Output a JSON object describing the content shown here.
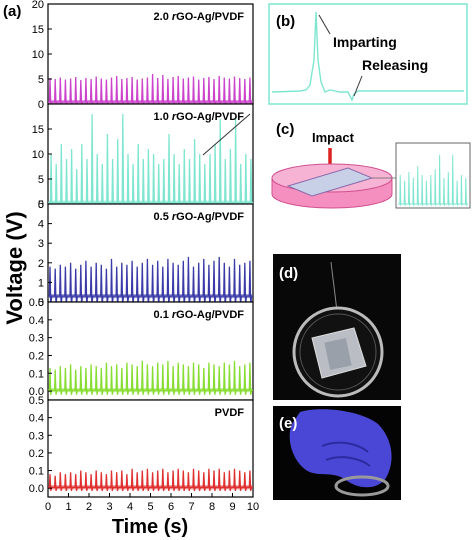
{
  "figure": {
    "panel_labels": {
      "a": "(a)",
      "b": "(b)",
      "c": "(c)",
      "d": "(d)",
      "e": "(e)"
    },
    "inset_b": {
      "peak_up_label": "Imparting",
      "peak_down_label": "Releasing"
    },
    "inset_c": {
      "impact_label": "Impact"
    }
  },
  "chart_data": {
    "type": "line",
    "xlabel": "Time (s)",
    "ylabel": "Voltage (V)",
    "xlim": [
      0,
      10
    ],
    "x_ticks": [
      0,
      1,
      2,
      3,
      4,
      5,
      6,
      7,
      8,
      9,
      10
    ],
    "grid": false,
    "subplots": [
      {
        "name": "2.0 rGO-Ag/PVDF",
        "name_parts": [
          "2.0 ",
          "r",
          "GO-Ag/PVDF"
        ],
        "color": "#cc44cc",
        "ylim": [
          0,
          20
        ],
        "y_ticks": [
          0,
          5,
          10,
          15,
          20
        ],
        "baseline": 0.4,
        "x_values": [
          0.1,
          0.35,
          0.6,
          0.85,
          1.1,
          1.35,
          1.6,
          1.85,
          2.1,
          2.35,
          2.6,
          2.85,
          3.1,
          3.35,
          3.6,
          3.85,
          4.1,
          4.35,
          4.6,
          4.85,
          5.1,
          5.35,
          5.6,
          5.85,
          6.1,
          6.35,
          6.6,
          6.85,
          7.1,
          7.35,
          7.6,
          7.85,
          8.1,
          8.35,
          8.6,
          8.85,
          9.1,
          9.35,
          9.6,
          9.85
        ],
        "peaks": [
          5.2,
          5.0,
          5.3,
          4.9,
          5.1,
          5.4,
          4.8,
          5.2,
          5.0,
          5.5,
          5.1,
          4.9,
          5.3,
          5.6,
          5.0,
          5.2,
          5.4,
          4.9,
          5.1,
          5.3,
          6.0,
          5.2,
          5.8,
          5.0,
          5.4,
          5.6,
          5.1,
          5.3,
          5.5,
          4.9,
          5.2,
          5.4,
          5.0,
          5.6,
          5.3,
          5.1,
          5.5,
          5.2,
          5.0,
          5.3
        ],
        "troughs": [
          -0.3,
          -0.3,
          -0.3,
          -0.3,
          -0.3,
          -0.3,
          -0.3,
          -0.3,
          -0.3,
          -0.3,
          -0.3,
          -0.3,
          -0.3,
          -0.3,
          -0.3,
          -0.3,
          -0.3,
          -0.3,
          -0.3,
          -0.3,
          -0.3,
          -0.3,
          -0.3,
          -0.3,
          -0.3,
          -0.3,
          -0.3,
          -0.3,
          -0.3,
          -0.3,
          -0.3,
          -0.3,
          -0.3,
          -0.3,
          -0.3,
          -0.3,
          -0.3,
          -0.3,
          -0.3,
          -0.3
        ]
      },
      {
        "name": "1.0 rGO-Ag/PVDF",
        "name_parts": [
          "1.0 ",
          "r",
          "GO-Ag/PVDF"
        ],
        "color": "#7ee6d0",
        "ylim": [
          0,
          20
        ],
        "y_ticks": [
          0,
          5,
          10,
          15
        ],
        "baseline": 0.3,
        "x_values": [
          0.15,
          0.4,
          0.65,
          0.9,
          1.15,
          1.4,
          1.65,
          1.9,
          2.15,
          2.4,
          2.65,
          2.9,
          3.15,
          3.4,
          3.65,
          3.9,
          4.15,
          4.4,
          4.65,
          4.9,
          5.15,
          5.4,
          5.65,
          5.9,
          6.15,
          6.4,
          6.65,
          6.9,
          7.15,
          7.4,
          7.65,
          7.9,
          8.15,
          8.4,
          8.65,
          8.9,
          9.15,
          9.4,
          9.65,
          9.9
        ],
        "peaks": [
          10,
          8,
          12,
          9,
          11,
          7,
          12,
          9,
          18,
          10,
          8,
          14,
          9,
          13,
          18,
          10,
          8,
          12,
          9,
          11,
          10,
          8,
          9,
          14,
          10,
          8,
          11,
          9,
          13,
          10,
          8,
          10,
          12,
          17,
          9,
          11,
          17,
          8,
          10,
          9
        ],
        "troughs": [
          -0.8,
          -0.8,
          -0.8,
          -0.8,
          -0.8,
          -0.8,
          -0.8,
          -0.8,
          -0.8,
          -0.8,
          -0.8,
          -0.8,
          -0.8,
          -0.8,
          -0.8,
          -0.8,
          -0.8,
          -0.8,
          -0.8,
          -0.8,
          -0.8,
          -0.8,
          -0.8,
          -0.8,
          -0.8,
          -0.8,
          -0.8,
          -0.8,
          -0.8,
          -0.8,
          -0.8,
          -0.8,
          -0.8,
          -0.8,
          -0.8,
          -0.8,
          -0.8,
          -0.8,
          -0.8,
          -0.8
        ]
      },
      {
        "name": "0.5 rGO-Ag/PVDF",
        "name_parts": [
          "0.5 ",
          "r",
          "GO-Ag/PVDF"
        ],
        "color": "#3a3aa8",
        "ylim": [
          0,
          5
        ],
        "y_ticks": [
          0,
          1,
          2,
          3,
          4,
          5
        ],
        "baseline": 0.3,
        "x_values": [
          0.1,
          0.35,
          0.6,
          0.85,
          1.1,
          1.35,
          1.6,
          1.85,
          2.1,
          2.35,
          2.6,
          2.85,
          3.1,
          3.35,
          3.6,
          3.85,
          4.1,
          4.35,
          4.6,
          4.85,
          5.1,
          5.35,
          5.6,
          5.85,
          6.1,
          6.35,
          6.6,
          6.85,
          7.1,
          7.35,
          7.6,
          7.85,
          8.1,
          8.35,
          8.6,
          8.85,
          9.1,
          9.35,
          9.6,
          9.85
        ],
        "peaks": [
          1.8,
          1.7,
          1.9,
          1.8,
          2.0,
          1.7,
          1.9,
          2.1,
          1.8,
          2.0,
          1.9,
          1.7,
          2.2,
          1.8,
          2.0,
          1.9,
          2.1,
          1.8,
          2.0,
          2.2,
          1.9,
          2.1,
          1.8,
          2.2,
          2.0,
          1.9,
          2.1,
          2.3,
          1.8,
          2.0,
          2.2,
          1.9,
          2.1,
          2.3,
          2.0,
          1.8,
          2.2,
          1.9,
          2.0,
          2.1
        ],
        "troughs": [
          -0.2,
          -0.2,
          -0.2,
          -0.2,
          -0.2,
          -0.2,
          -0.2,
          -0.2,
          -0.2,
          -0.2,
          -0.2,
          -0.2,
          -0.2,
          -0.2,
          -0.2,
          -0.2,
          -0.2,
          -0.2,
          -0.2,
          -0.2,
          -0.2,
          -0.2,
          -0.2,
          -0.2,
          -0.2,
          -0.2,
          -0.2,
          -0.2,
          -0.2,
          -0.2,
          -0.2,
          -0.2,
          -0.2,
          -0.2,
          -0.2,
          -0.2,
          -0.2,
          -0.2,
          -0.2,
          -0.2
        ]
      },
      {
        "name": "0.1 rGO-Ag/PVDF",
        "name_parts": [
          "0.1 ",
          "r",
          "GO-Ag/PVDF"
        ],
        "color": "#88dd33",
        "ylim": [
          -0.05,
          0.5
        ],
        "y_ticks": [
          0.0,
          0.1,
          0.2,
          0.3,
          0.4,
          0.5
        ],
        "baseline": 0.005,
        "x_values": [
          0.1,
          0.35,
          0.6,
          0.85,
          1.1,
          1.35,
          1.6,
          1.85,
          2.1,
          2.35,
          2.6,
          2.85,
          3.1,
          3.35,
          3.6,
          3.85,
          4.1,
          4.35,
          4.6,
          4.85,
          5.1,
          5.35,
          5.6,
          5.85,
          6.1,
          6.35,
          6.6,
          6.85,
          7.1,
          7.35,
          7.6,
          7.85,
          8.1,
          8.35,
          8.6,
          8.85,
          9.1,
          9.35,
          9.6,
          9.85
        ],
        "peaks": [
          0.13,
          0.12,
          0.14,
          0.13,
          0.15,
          0.12,
          0.14,
          0.13,
          0.15,
          0.14,
          0.13,
          0.16,
          0.14,
          0.15,
          0.13,
          0.16,
          0.15,
          0.14,
          0.17,
          0.15,
          0.14,
          0.16,
          0.15,
          0.17,
          0.14,
          0.16,
          0.15,
          0.14,
          0.16,
          0.15,
          0.13,
          0.16,
          0.15,
          0.14,
          0.16,
          0.15,
          0.17,
          0.14,
          0.15,
          0.16
        ],
        "troughs": [
          -0.02,
          -0.02,
          -0.02,
          -0.02,
          -0.02,
          -0.02,
          -0.02,
          -0.02,
          -0.02,
          -0.02,
          -0.02,
          -0.02,
          -0.02,
          -0.02,
          -0.02,
          -0.02,
          -0.02,
          -0.02,
          -0.02,
          -0.02,
          -0.02,
          -0.02,
          -0.02,
          -0.02,
          -0.02,
          -0.02,
          -0.02,
          -0.02,
          -0.02,
          -0.02,
          -0.02,
          -0.02,
          -0.02,
          -0.02,
          -0.02,
          -0.02,
          -0.02,
          -0.02,
          -0.02,
          -0.02
        ]
      },
      {
        "name": "PVDF",
        "name_parts": [
          "PVDF",
          "",
          ""
        ],
        "color": "#e03030",
        "ylim": [
          -0.05,
          0.5
        ],
        "y_ticks": [
          0.0,
          0.1,
          0.2,
          0.3,
          0.4,
          0.5
        ],
        "baseline": 0.005,
        "x_values": [
          0.1,
          0.35,
          0.6,
          0.85,
          1.1,
          1.35,
          1.6,
          1.85,
          2.1,
          2.35,
          2.6,
          2.85,
          3.1,
          3.35,
          3.6,
          3.85,
          4.1,
          4.35,
          4.6,
          4.85,
          5.1,
          5.35,
          5.6,
          5.85,
          6.1,
          6.35,
          6.6,
          6.85,
          7.1,
          7.35,
          7.6,
          7.85,
          8.1,
          8.35,
          8.6,
          8.85,
          9.1,
          9.35,
          9.6,
          9.85
        ],
        "peaks": [
          0.08,
          0.07,
          0.09,
          0.08,
          0.09,
          0.08,
          0.1,
          0.09,
          0.08,
          0.1,
          0.09,
          0.08,
          0.1,
          0.09,
          0.1,
          0.08,
          0.11,
          0.09,
          0.1,
          0.11,
          0.09,
          0.1,
          0.11,
          0.09,
          0.1,
          0.11,
          0.1,
          0.09,
          0.11,
          0.1,
          0.09,
          0.11,
          0.1,
          0.11,
          0.09,
          0.1,
          0.11,
          0.1,
          0.09,
          0.1
        ],
        "troughs": [
          -0.015,
          -0.015,
          -0.015,
          -0.015,
          -0.015,
          -0.015,
          -0.015,
          -0.015,
          -0.015,
          -0.015,
          -0.015,
          -0.015,
          -0.015,
          -0.015,
          -0.015,
          -0.015,
          -0.015,
          -0.015,
          -0.015,
          -0.015,
          -0.015,
          -0.015,
          -0.015,
          -0.015,
          -0.015,
          -0.015,
          -0.015,
          -0.015,
          -0.015,
          -0.015,
          -0.015,
          -0.015,
          -0.015,
          -0.015,
          -0.015,
          -0.015,
          -0.015,
          -0.015,
          -0.015,
          -0.015
        ]
      }
    ]
  }
}
